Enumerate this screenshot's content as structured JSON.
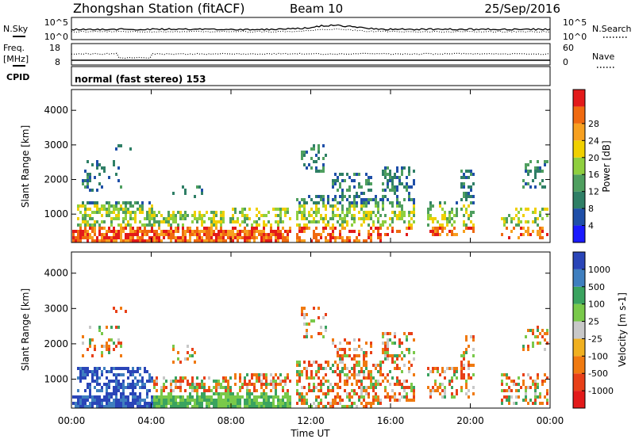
{
  "header": {
    "title": "Zhongshan Station (fitACF)",
    "beam": "Beam 10",
    "date": "25/Sep/2016"
  },
  "strip_sky": {
    "left_label": "N.Sky",
    "left_ticks": [
      "10^5",
      "10^0"
    ],
    "right_label": "N.Search",
    "right_ticks": [
      "10^5",
      "10^0"
    ]
  },
  "strip_freq": {
    "left_label_1": "Freq.",
    "left_label_2": "[MHz]",
    "left_ticks": [
      "18",
      "8"
    ],
    "right_label": "Nave",
    "right_ticks": [
      "60",
      "0"
    ]
  },
  "strip_cpid": {
    "label": "CPID",
    "value": "normal (fast stereo) 153"
  },
  "x_axis": {
    "ticks": [
      "00:00",
      "04:00",
      "08:00",
      "12:00",
      "16:00",
      "20:00",
      "00:00"
    ],
    "label": "Time UT"
  },
  "chart_data": [
    {
      "type": "heatmap",
      "panel": "power",
      "xlabel": "Time UT",
      "ylabel": "Slant Range [km]",
      "xlim": [
        0,
        24
      ],
      "ylim": [
        180,
        4600
      ],
      "y_ticks": [
        1000,
        2000,
        3000,
        4000
      ],
      "colorbar": {
        "label": "Power [dB]",
        "ticks": [
          "4",
          "8",
          "12",
          "16",
          "20",
          "24",
          "28"
        ],
        "colors": [
          "#1a1aff",
          "#1f4fa8",
          "#2f7f66",
          "#4f9f5f",
          "#8fcf3f",
          "#f0d000",
          "#f7a020",
          "#f06a10",
          "#e31a1a"
        ]
      }
    },
    {
      "type": "heatmap",
      "panel": "velocity",
      "xlabel": "Time UT",
      "ylabel": "Slant Range [km]",
      "xlim": [
        0,
        24
      ],
      "ylim": [
        180,
        4600
      ],
      "y_ticks": [
        1000,
        2000,
        3000,
        4000
      ],
      "colorbar": {
        "label": "Velocity [m s-1]",
        "ticks": [
          "1000",
          "500",
          "100",
          "25",
          "-25",
          "-100",
          "-500",
          "-1000"
        ],
        "colors": [
          "#2a45b8",
          "#3f7fbf",
          "#3aa35f",
          "#79c94a",
          "#c8c8c8",
          "#f0b020",
          "#f07a10",
          "#e84018",
          "#e31a1a"
        ]
      }
    }
  ]
}
